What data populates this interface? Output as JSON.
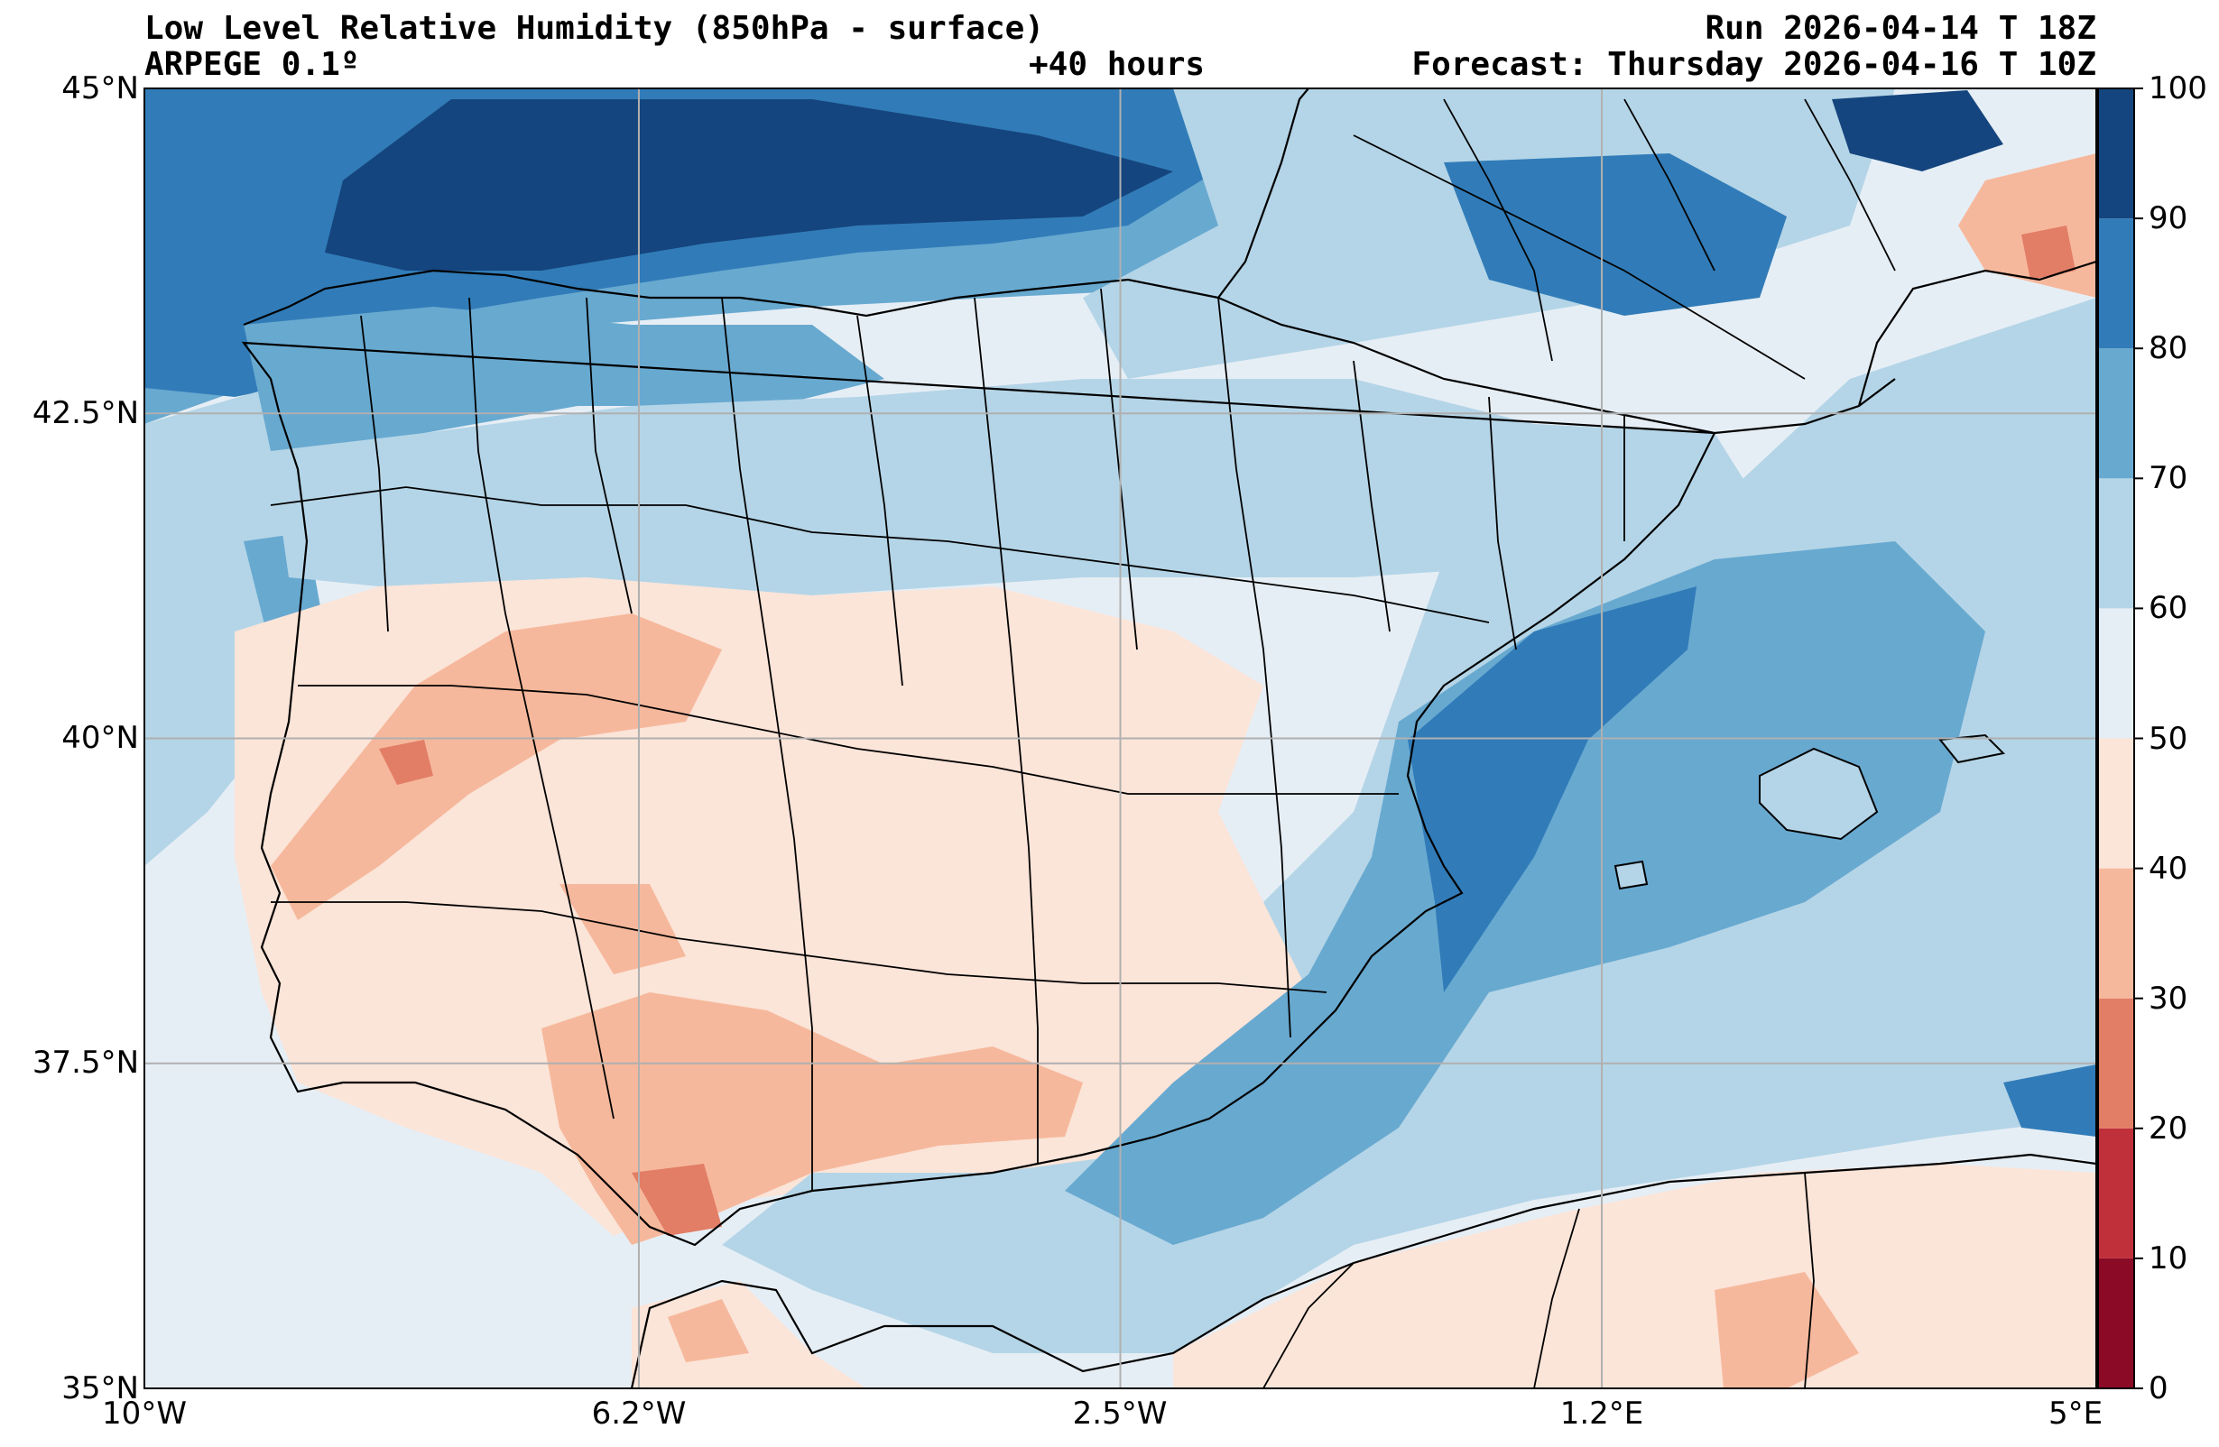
{
  "header": {
    "title": "Low Level Relative Humidity (850hPa - surface)",
    "model": "ARPEGE 0.1º",
    "lead": "+40 hours",
    "run": "Run 2026-04-14 T 18Z",
    "forecast": "Forecast: Thursday 2026-04-16 T 10Z"
  },
  "axes": {
    "lat_labels": [
      "45°N",
      "42.5°N",
      "40°N",
      "37.5°N",
      "35°N"
    ],
    "lon_labels": [
      "10°W",
      "6.2°W",
      "2.5°W",
      "1.2°E",
      "5°E"
    ],
    "lat_values": [
      45,
      42.5,
      40,
      37.5,
      35
    ],
    "lon_values": [
      -10,
      -6.2,
      -2.5,
      1.2,
      5
    ],
    "lat_range": [
      35,
      45
    ],
    "lon_range": [
      -10,
      5
    ],
    "grid": true
  },
  "colorbar": {
    "labels": [
      "0",
      "10",
      "20",
      "30",
      "40",
      "50",
      "60",
      "70",
      "80",
      "90",
      "100"
    ],
    "levels": [
      0,
      10,
      20,
      30,
      40,
      50,
      60,
      70,
      80,
      90,
      100
    ],
    "colors": [
      "#8b0a26",
      "#c0303a",
      "#e27d66",
      "#f6b89c",
      "#fbe4d8",
      "#e6eef5",
      "#b4d5e7",
      "#68a9d0",
      "#317cb8",
      "#15457e"
    ]
  },
  "colors": {
    "land_low": "#fbe4d8",
    "land_dry": "#f6b89c",
    "land_mid": "#e6eef5",
    "sea_mid": "#68a9d0",
    "sea_wet": "#317cb8",
    "coast": "#000000",
    "grid": "#b0b0b0"
  }
}
